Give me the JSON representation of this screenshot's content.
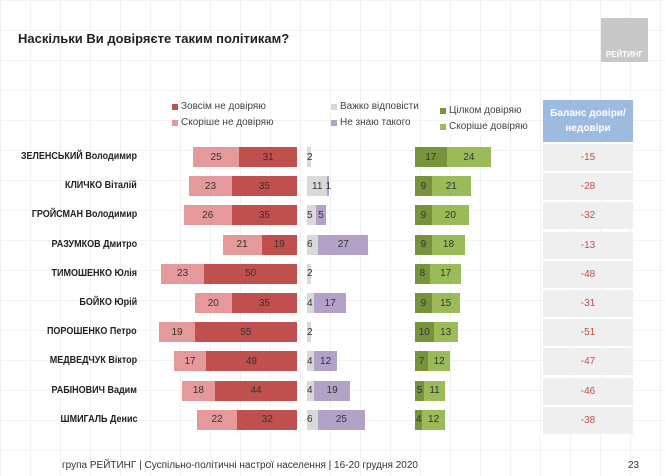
{
  "title": "Наскільки Ви довіряєте таким політикам?",
  "logo_text": "РЕЙТИНГ",
  "colors": {
    "strong_distrust": "#c0504d",
    "rather_distrust": "#e6999a",
    "hard_to_say": "#d9d9d9",
    "dont_know": "#b3a2c7",
    "fully_trust": "#77933c",
    "rather_trust": "#9bbb59",
    "balance_header": "#9dbbe0",
    "balance_text": "#c0504d"
  },
  "chart_data": {
    "type": "bar",
    "orientation": "horizontal-diverging",
    "categories": [
      "ЗЕЛЕНСЬКИЙ Володимир",
      "КЛИЧКО Віталій",
      "ГРОЙСМАН Володимир",
      "РАЗУМКОВ Дмитро",
      "ТИМОШЕНКО Юлія",
      "БОЙКО Юрій",
      "ПОРОШЕНКО Петро",
      "МЕДВЕДЧУК Віктор",
      "РАБІНОВИЧ Вадим",
      "ШМИГАЛЬ Денис"
    ],
    "series": [
      {
        "name": "Зовсім не довіряю",
        "values": [
          31,
          35,
          35,
          19,
          50,
          35,
          55,
          49,
          44,
          32
        ]
      },
      {
        "name": "Скоріше не довіряю",
        "values": [
          25,
          23,
          26,
          21,
          23,
          20,
          19,
          17,
          18,
          22
        ]
      },
      {
        "name": "Важко відповісти",
        "values": [
          2,
          11,
          5,
          6,
          2,
          4,
          2,
          4,
          4,
          6
        ]
      },
      {
        "name": "Не знаю такого",
        "values": [
          null,
          1,
          5,
          27,
          null,
          17,
          null,
          12,
          19,
          25
        ]
      },
      {
        "name": "Цілком довіряю",
        "values": [
          17,
          9,
          9,
          9,
          8,
          9,
          10,
          7,
          5,
          4
        ]
      },
      {
        "name": "Скоріше довіряю",
        "values": [
          24,
          21,
          20,
          18,
          17,
          15,
          13,
          12,
          11,
          12
        ]
      }
    ],
    "balance": {
      "label": "Баланс довіри/недовіри",
      "values": [
        "-15",
        "-28",
        "-32",
        "-13",
        "-48",
        "-31",
        "-51",
        "-47",
        "-46",
        "-38"
      ]
    }
  },
  "footer": "група РЕЙТИНГ | Суспільно-політичні настрої населення | 16-20 грудня 2020",
  "page_number": "23"
}
